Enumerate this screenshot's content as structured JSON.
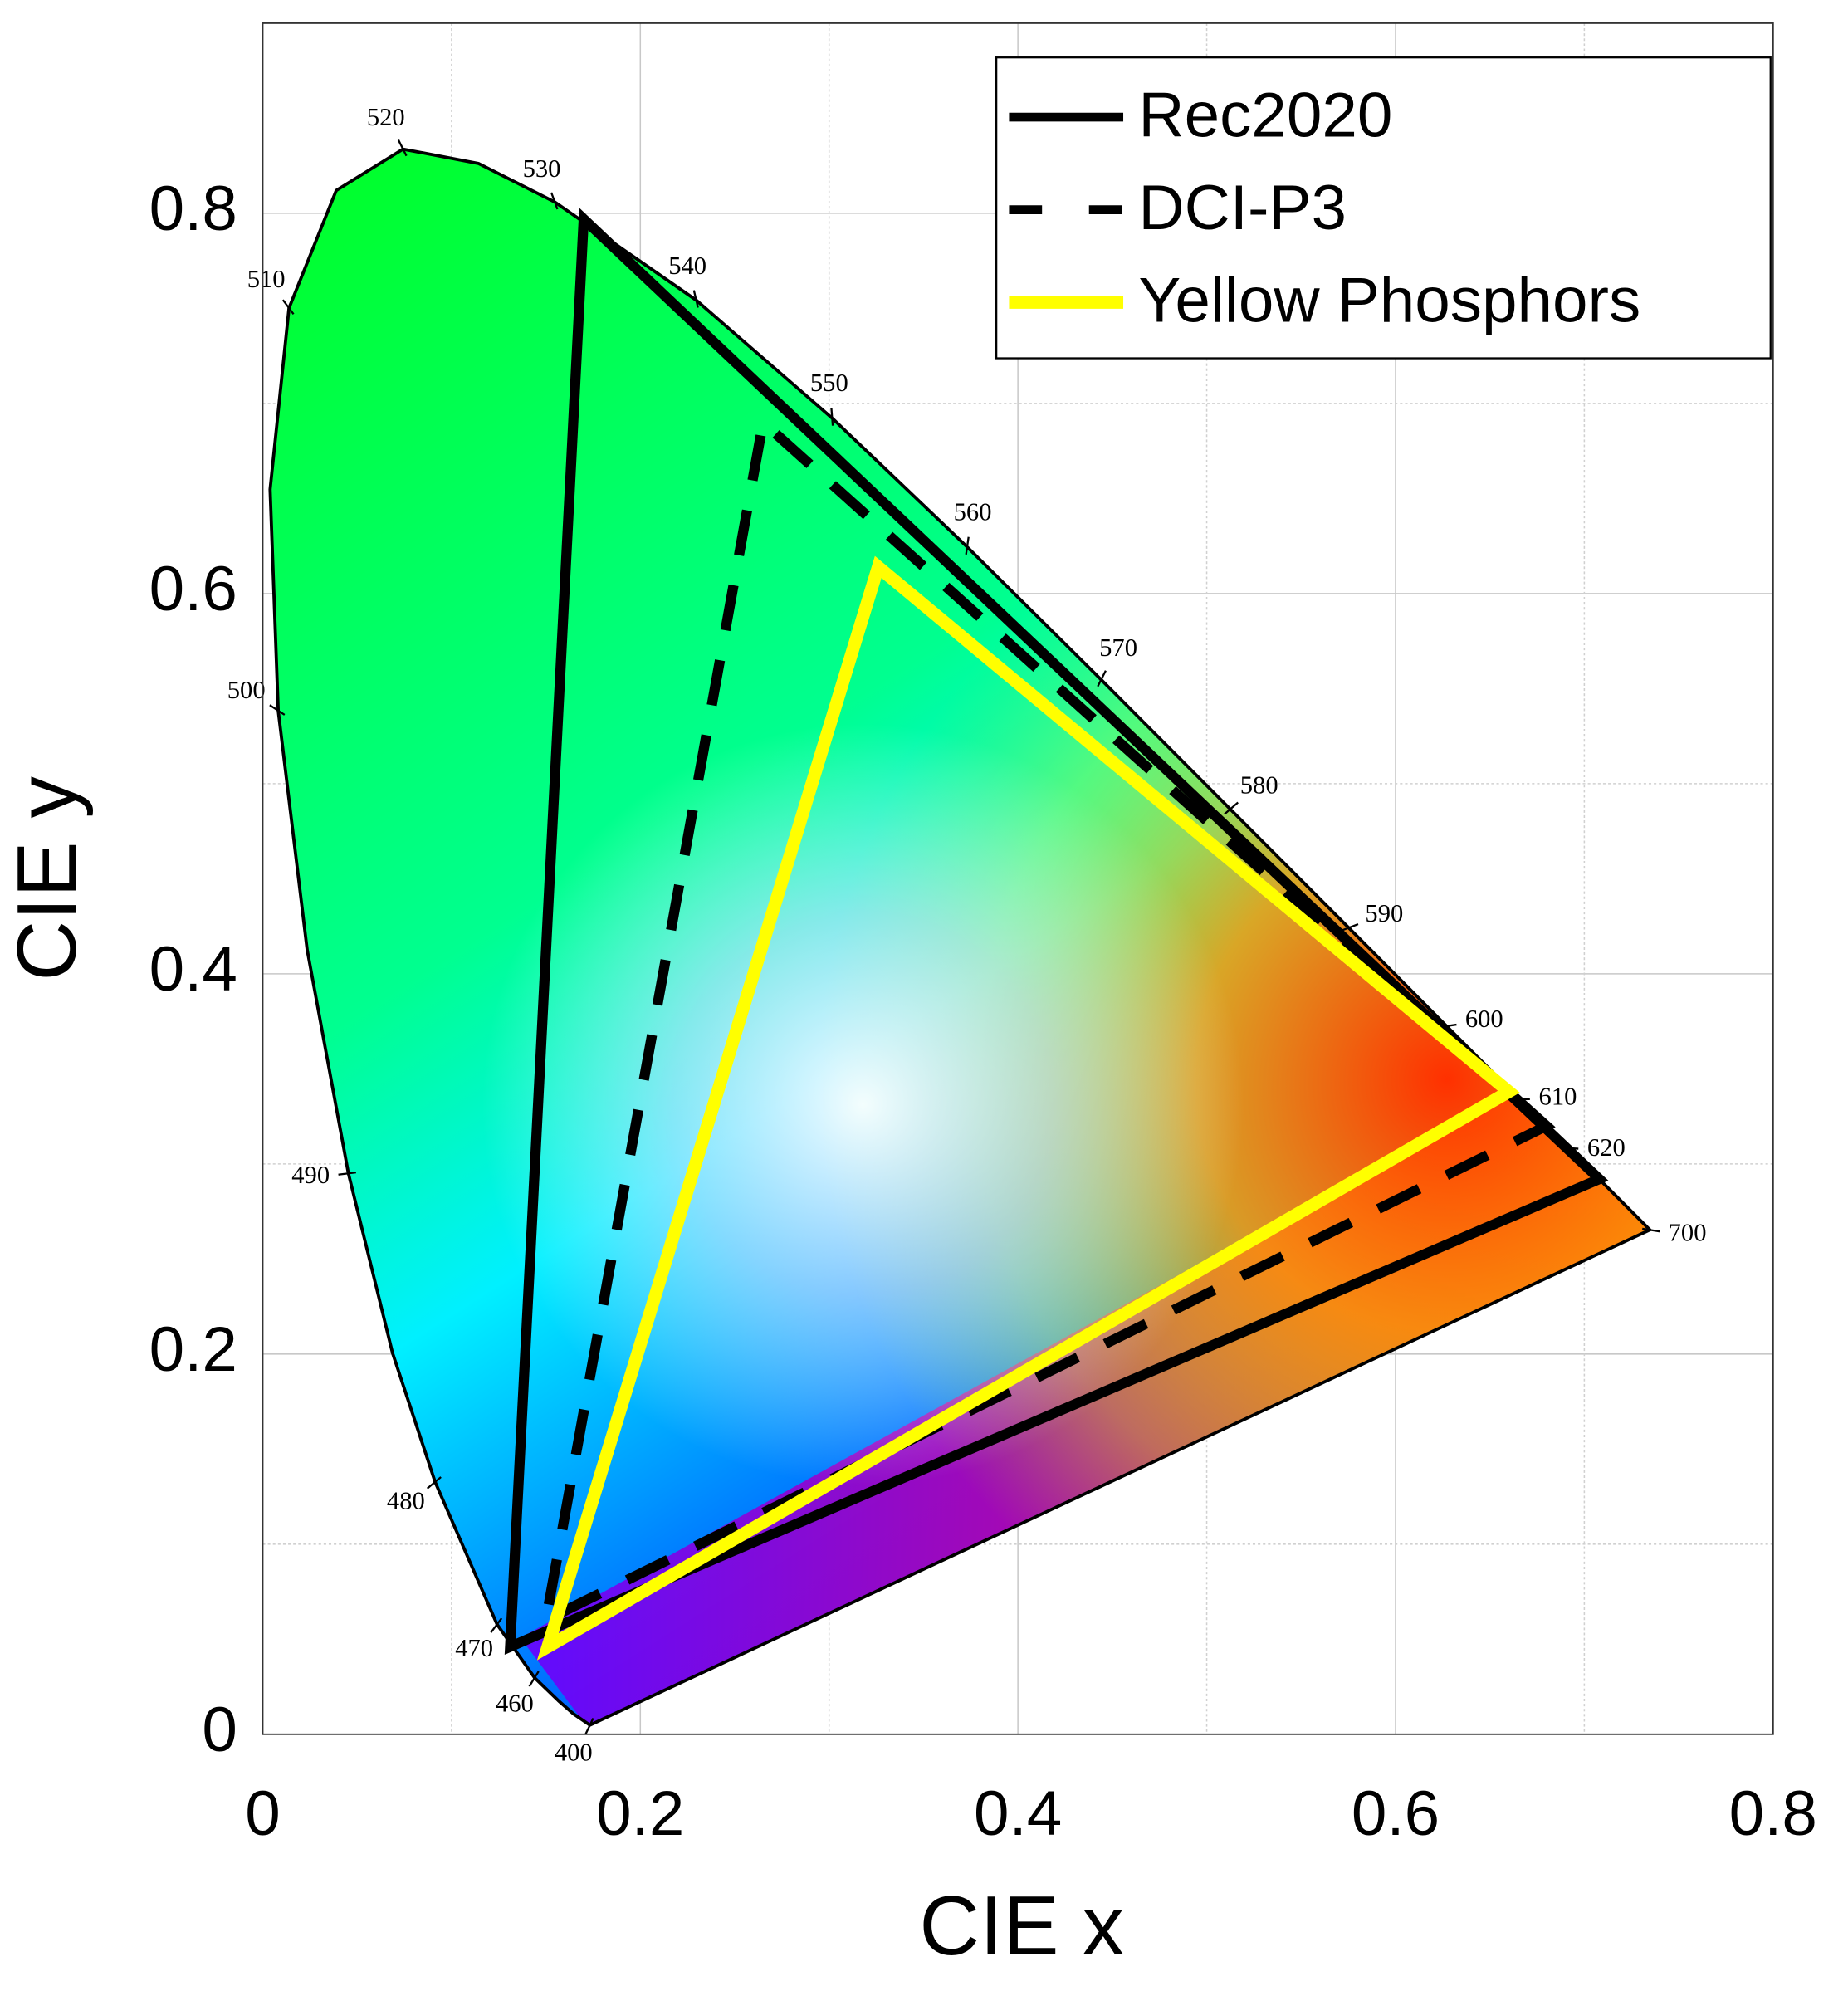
{
  "chart_data": {
    "type": "chromaticity",
    "x_label": "CIE x",
    "y_label": "CIE y",
    "xlim": [
      0,
      0.8
    ],
    "ylim": [
      0,
      0.9
    ],
    "xticks": [
      0,
      0.2,
      0.4,
      0.6,
      0.8
    ],
    "yticks": [
      0,
      0.2,
      0.4,
      0.6,
      0.8
    ],
    "x_minor_grid": [
      0.1,
      0.3,
      0.5,
      0.7
    ],
    "y_minor_grid": [
      0.1,
      0.3,
      0.5,
      0.7
    ],
    "grid": true,
    "legend": "upper right",
    "locus": {
      "x": [
        0.1733,
        0.1644,
        0.1566,
        0.144,
        0.1241,
        0.0913,
        0.0687,
        0.0454,
        0.0235,
        0.0082,
        0.0039,
        0.0139,
        0.0389,
        0.0743,
        0.1142,
        0.1547,
        0.2296,
        0.3016,
        0.3731,
        0.4441,
        0.5125,
        0.5752,
        0.627,
        0.6658,
        0.6915,
        0.7347
      ],
      "y": [
        0.0048,
        0.0109,
        0.0177,
        0.0297,
        0.0578,
        0.1327,
        0.2007,
        0.295,
        0.4127,
        0.5384,
        0.6548,
        0.7502,
        0.812,
        0.8338,
        0.8262,
        0.8059,
        0.7543,
        0.6923,
        0.6245,
        0.5547,
        0.4866,
        0.4242,
        0.3725,
        0.334,
        0.3083,
        0.2653
      ],
      "wavelengths": [
        400,
        null,
        null,
        460,
        470,
        480,
        null,
        490,
        null,
        500,
        null,
        510,
        null,
        520,
        null,
        530,
        540,
        550,
        560,
        570,
        580,
        590,
        600,
        610,
        620,
        700
      ]
    },
    "series": [
      {
        "name": "Rec2020",
        "color": "#000000",
        "dashed": false,
        "x": [
          0.708,
          0.17,
          0.131
        ],
        "y": [
          0.292,
          0.797,
          0.046
        ]
      },
      {
        "name": "DCI-P3",
        "color": "#000000",
        "dashed": true,
        "x": [
          0.68,
          0.265,
          0.15
        ],
        "y": [
          0.32,
          0.69,
          0.06
        ]
      },
      {
        "name": "Yellow Phosphors",
        "color": "#ffff00",
        "dashed": false,
        "x": [
          0.66,
          0.326,
          0.151
        ],
        "y": [
          0.338,
          0.614,
          0.046
        ]
      }
    ]
  }
}
